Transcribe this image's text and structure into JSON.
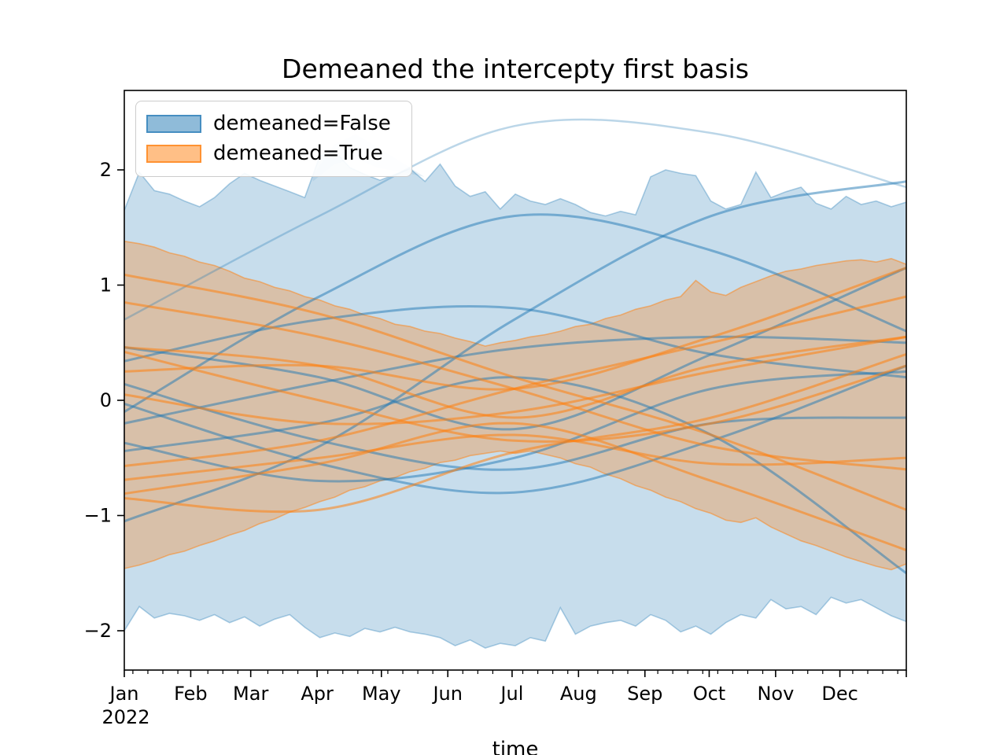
{
  "figure": {
    "title": "Demeaned the intercepty first basis",
    "xlabel": "time",
    "year_label": "2022"
  },
  "legend": {
    "items": [
      {
        "label": "demeaned=False",
        "color": "#1f77b4"
      },
      {
        "label": "demeaned=True",
        "color": "#ff7f0e"
      }
    ]
  },
  "chart_data": {
    "type": "line",
    "title": "Demeaned the intercepty first basis",
    "xlabel": "time",
    "ylabel": "",
    "x_year": "2022",
    "x_ticks": [
      "Jan",
      "Feb",
      "Mar",
      "Apr",
      "May",
      "Jun",
      "Jul",
      "Aug",
      "Sep",
      "Oct",
      "Nov",
      "Dec"
    ],
    "month_start_days": [
      0,
      31,
      59,
      90,
      120,
      151,
      181,
      212,
      243,
      273,
      304,
      334
    ],
    "x_range_days": 365,
    "minor_tick_interval_days": 7,
    "y_ticks": [
      "2",
      "1",
      "0",
      "−1",
      "−2"
    ],
    "y_tick_values": [
      2,
      1,
      0,
      -1,
      -2
    ],
    "ylim": [
      -2.34,
      2.69
    ],
    "grid": false,
    "legend_position": "upper left",
    "colors": {
      "false_group": "#1f77b4",
      "true_group": "#ff7f0e"
    },
    "bands": [
      {
        "name": "demeaned=False min-max envelope",
        "fill": "rgba(31,119,180,0.25)",
        "edge": "rgba(31,119,180,0.35)",
        "step_days": 7.019,
        "upper": [
          1.65,
          1.98,
          1.82,
          1.79,
          1.73,
          1.68,
          1.76,
          1.88,
          1.97,
          1.91,
          1.86,
          1.81,
          1.76,
          2.12,
          2.16,
          2.02,
          1.96,
          1.91,
          1.96,
          2.01,
          1.9,
          2.05,
          1.86,
          1.77,
          1.81,
          1.66,
          1.79,
          1.73,
          1.7,
          1.75,
          1.7,
          1.63,
          1.6,
          1.64,
          1.61,
          1.94,
          2.0,
          1.97,
          1.95,
          1.73,
          1.66,
          1.7,
          1.98,
          1.76,
          1.81,
          1.85,
          1.71,
          1.66,
          1.77,
          1.7,
          1.73,
          1.68,
          1.72
        ],
        "lower": [
          -2.0,
          -1.79,
          -1.89,
          -1.85,
          -1.87,
          -1.91,
          -1.86,
          -1.93,
          -1.88,
          -1.96,
          -1.9,
          -1.86,
          -1.97,
          -2.06,
          -2.02,
          -2.05,
          -1.98,
          -2.01,
          -1.97,
          -2.01,
          -2.03,
          -2.06,
          -2.13,
          -2.08,
          -2.15,
          -2.11,
          -2.13,
          -2.06,
          -2.09,
          -1.8,
          -2.03,
          -1.96,
          -1.93,
          -1.91,
          -1.96,
          -1.86,
          -1.91,
          -2.01,
          -1.96,
          -2.03,
          -1.93,
          -1.86,
          -1.89,
          -1.73,
          -1.81,
          -1.79,
          -1.86,
          -1.71,
          -1.76,
          -1.73,
          -1.8,
          -1.87,
          -1.92
        ]
      },
      {
        "name": "demeaned=True min-max envelope",
        "fill": "rgba(255,127,14,0.3)",
        "edge": "rgba(255,127,14,0.5)",
        "step_days": 7.019,
        "upper": [
          1.38,
          1.36,
          1.33,
          1.28,
          1.25,
          1.2,
          1.17,
          1.12,
          1.06,
          1.03,
          0.98,
          0.95,
          0.9,
          0.87,
          0.82,
          0.79,
          0.74,
          0.71,
          0.66,
          0.64,
          0.6,
          0.58,
          0.54,
          0.51,
          0.47,
          0.5,
          0.52,
          0.55,
          0.57,
          0.6,
          0.64,
          0.66,
          0.71,
          0.74,
          0.79,
          0.82,
          0.87,
          0.9,
          1.04,
          0.94,
          0.91,
          0.98,
          1.03,
          1.08,
          1.12,
          1.14,
          1.17,
          1.19,
          1.21,
          1.22,
          1.2,
          1.23,
          1.18
        ],
        "lower": [
          -1.46,
          -1.43,
          -1.39,
          -1.34,
          -1.31,
          -1.26,
          -1.22,
          -1.17,
          -1.13,
          -1.07,
          -1.03,
          -0.97,
          -0.93,
          -0.88,
          -0.84,
          -0.78,
          -0.75,
          -0.7,
          -0.67,
          -0.62,
          -0.59,
          -0.54,
          -0.52,
          -0.48,
          -0.46,
          -0.44,
          -0.46,
          -0.44,
          -0.47,
          -0.5,
          -0.55,
          -0.58,
          -0.64,
          -0.68,
          -0.74,
          -0.78,
          -0.84,
          -0.88,
          -0.94,
          -0.98,
          -1.04,
          -1.06,
          -1.02,
          -1.1,
          -1.16,
          -1.22,
          -1.26,
          -1.31,
          -1.36,
          -1.4,
          -1.44,
          -1.47,
          -1.42
        ]
      }
    ],
    "ghost_region": {
      "name": "secondary envelope bump",
      "fill": "rgba(31,119,180,0.10)",
      "points": [
        [
          88,
          1.95
        ],
        [
          98,
          2.22
        ],
        [
          108,
          2.31
        ],
        [
          118,
          2.2
        ],
        [
          130,
          2.06
        ],
        [
          140,
          1.94
        ],
        [
          130,
          1.98
        ],
        [
          118,
          2.02
        ],
        [
          108,
          2.1
        ],
        [
          98,
          2.05
        ],
        [
          88,
          1.9
        ]
      ]
    },
    "control_days": [
      0,
      91,
      182,
      274,
      365
    ],
    "curves": [
      {
        "group": "demeaned=False",
        "name": "false-arc-light",
        "stroke": "rgba(31,119,180,0.3)",
        "width": 2.5,
        "values": [
          0.7,
          1.6,
          2.38,
          2.32,
          1.85
        ]
      },
      {
        "group": "demeaned=False",
        "name": "false-1",
        "stroke": "rgba(31,119,180,0.5)",
        "width": 3,
        "values": [
          -0.1,
          0.9,
          1.6,
          1.3,
          0.6
        ]
      },
      {
        "group": "demeaned=False",
        "name": "false-2",
        "stroke": "rgba(31,119,180,0.5)",
        "width": 3,
        "values": [
          -1.05,
          -0.4,
          0.7,
          1.6,
          1.9
        ]
      },
      {
        "group": "demeaned=False",
        "name": "false-3",
        "stroke": "rgba(31,119,180,0.5)",
        "width": 3,
        "values": [
          0.46,
          0.2,
          -0.25,
          0.4,
          1.15
        ]
      },
      {
        "group": "demeaned=False",
        "name": "false-4",
        "stroke": "rgba(31,119,180,0.5)",
        "width": 3,
        "values": [
          0.34,
          0.7,
          0.8,
          0.4,
          0.2
        ]
      },
      {
        "group": "demeaned=False",
        "name": "false-5",
        "stroke": "rgba(31,119,180,0.5)",
        "width": 3,
        "values": [
          -0.03,
          -0.55,
          -0.8,
          -0.35,
          0.3
        ]
      },
      {
        "group": "demeaned=False",
        "name": "false-6",
        "stroke": "rgba(31,119,180,0.5)",
        "width": 3,
        "values": [
          -0.2,
          0.15,
          0.45,
          0.55,
          0.5
        ]
      },
      {
        "group": "demeaned=False",
        "name": "false-7",
        "stroke": "rgba(31,119,180,0.5)",
        "width": 3,
        "values": [
          -0.37,
          -0.7,
          -0.5,
          0.1,
          0.25
        ]
      },
      {
        "group": "demeaned=False",
        "name": "false-8",
        "stroke": "rgba(31,119,180,0.5)",
        "width": 3,
        "values": [
          -0.44,
          -0.2,
          0.2,
          -0.3,
          -1.5
        ]
      },
      {
        "group": "demeaned=False",
        "name": "false-9",
        "stroke": "rgba(31,119,180,0.5)",
        "width": 3,
        "values": [
          0.14,
          -0.35,
          -0.6,
          -0.2,
          -0.15
        ]
      },
      {
        "group": "demeaned=True",
        "name": "true-1",
        "stroke": "rgba(255,127,14,0.55)",
        "width": 3,
        "values": [
          1.09,
          0.75,
          0.2,
          -0.3,
          -0.95
        ]
      },
      {
        "group": "demeaned=True",
        "name": "true-2",
        "stroke": "rgba(255,127,14,0.55)",
        "width": 3,
        "values": [
          0.85,
          0.55,
          0.1,
          -0.4,
          -0.6
        ]
      },
      {
        "group": "demeaned=True",
        "name": "true-3",
        "stroke": "rgba(255,127,14,0.55)",
        "width": 3,
        "values": [
          0.46,
          0.3,
          -0.15,
          0.3,
          0.55
        ]
      },
      {
        "group": "demeaned=True",
        "name": "true-4",
        "stroke": "rgba(255,127,14,0.55)",
        "width": 3,
        "values": [
          0.42,
          0.0,
          -0.35,
          -0.2,
          0.3
        ]
      },
      {
        "group": "demeaned=True",
        "name": "true-5",
        "stroke": "rgba(255,127,14,0.55)",
        "width": 3,
        "values": [
          0.25,
          0.3,
          0.1,
          0.55,
          1.15
        ]
      },
      {
        "group": "demeaned=True",
        "name": "true-6",
        "stroke": "rgba(255,127,14,0.55)",
        "width": 3,
        "values": [
          0.05,
          -0.2,
          -0.1,
          0.25,
          0.55
        ]
      },
      {
        "group": "demeaned=True",
        "name": "true-7",
        "stroke": "rgba(255,127,14,0.55)",
        "width": 3,
        "values": [
          -0.57,
          -0.35,
          0.1,
          0.5,
          0.9
        ]
      },
      {
        "group": "demeaned=True",
        "name": "true-8",
        "stroke": "rgba(255,127,14,0.55)",
        "width": 3,
        "values": [
          -0.69,
          -0.5,
          -0.3,
          -0.55,
          -0.5
        ]
      },
      {
        "group": "demeaned=True",
        "name": "true-9",
        "stroke": "rgba(255,127,14,0.55)",
        "width": 3,
        "values": [
          -0.81,
          -0.55,
          -0.2,
          -0.7,
          -1.3
        ]
      },
      {
        "group": "demeaned=True",
        "name": "true-10",
        "stroke": "rgba(255,127,14,0.55)",
        "width": 3,
        "values": [
          -0.85,
          -0.95,
          -0.45,
          -0.15,
          0.4
        ]
      }
    ]
  }
}
